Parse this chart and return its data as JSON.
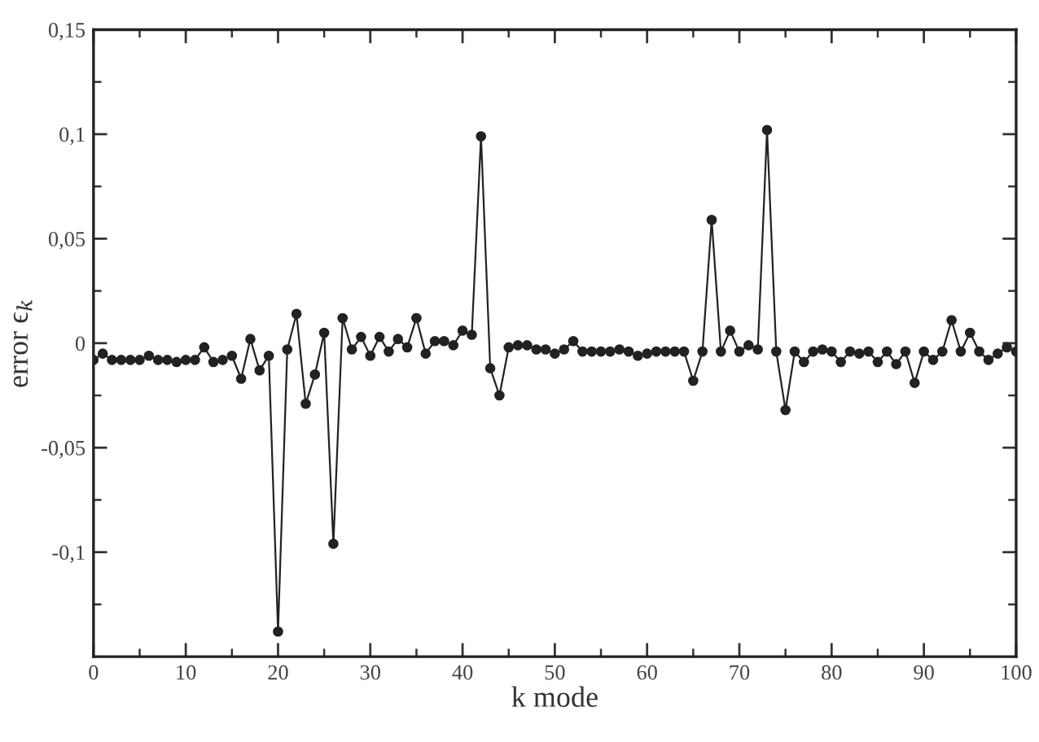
{
  "chart_data": {
    "type": "line",
    "xlabel": "k mode",
    "ylabel": "error ϵ$_{k}$",
    "x": [
      0,
      1,
      2,
      3,
      4,
      5,
      6,
      7,
      8,
      9,
      10,
      11,
      12,
      13,
      14,
      15,
      16,
      17,
      18,
      19,
      20,
      21,
      22,
      23,
      24,
      25,
      26,
      27,
      28,
      29,
      30,
      31,
      32,
      33,
      34,
      35,
      36,
      37,
      38,
      39,
      40,
      41,
      42,
      43,
      44,
      45,
      46,
      47,
      48,
      49,
      50,
      51,
      52,
      53,
      54,
      55,
      56,
      57,
      58,
      59,
      60,
      61,
      62,
      63,
      64,
      65,
      66,
      67,
      68,
      69,
      70,
      71,
      72,
      73,
      74,
      75,
      76,
      77,
      78,
      79,
      80,
      81,
      82,
      83,
      84,
      85,
      86,
      87,
      88,
      89,
      90,
      91,
      92,
      93,
      94,
      95,
      96,
      97,
      98,
      99,
      100
    ],
    "values": [
      -0.008,
      -0.005,
      -0.008,
      -0.008,
      -0.008,
      -0.008,
      -0.006,
      -0.008,
      -0.008,
      -0.009,
      -0.008,
      -0.008,
      -0.002,
      -0.009,
      -0.008,
      -0.006,
      -0.017,
      0.002,
      -0.013,
      -0.006,
      -0.138,
      -0.003,
      0.014,
      -0.029,
      -0.015,
      0.005,
      -0.096,
      0.012,
      -0.003,
      0.003,
      -0.006,
      0.003,
      -0.004,
      0.002,
      -0.002,
      0.012,
      -0.005,
      0.001,
      0.001,
      -0.001,
      0.006,
      0.004,
      0.099,
      -0.012,
      -0.025,
      -0.002,
      -0.001,
      -0.001,
      -0.003,
      -0.003,
      -0.005,
      -0.003,
      0.001,
      -0.004,
      -0.004,
      -0.004,
      -0.004,
      -0.003,
      -0.004,
      -0.006,
      -0.005,
      -0.004,
      -0.004,
      -0.004,
      -0.004,
      -0.018,
      -0.004,
      0.059,
      -0.004,
      0.006,
      -0.004,
      -0.001,
      -0.003,
      0.102,
      -0.004,
      -0.032,
      -0.004,
      -0.009,
      -0.004,
      -0.003,
      -0.004,
      -0.009,
      -0.004,
      -0.005,
      -0.004,
      -0.009,
      -0.004,
      -0.01,
      -0.004,
      -0.019,
      -0.004,
      -0.008,
      -0.004,
      0.011,
      -0.004,
      0.005,
      -0.004,
      -0.008,
      -0.005,
      -0.002,
      -0.004
    ],
    "color": "#222222",
    "marker": "circle",
    "line_style": "solid",
    "xlim": [
      0,
      100
    ],
    "xticks": [
      0,
      {
        "value": 5,
        "label": null
      },
      10,
      {
        "value": 15,
        "label": null
      },
      20,
      {
        "value": 25,
        "label": null
      },
      30,
      {
        "value": 35,
        "label": null
      },
      40,
      {
        "value": 45,
        "label": null
      },
      50,
      {
        "value": 55,
        "label": null
      },
      60,
      {
        "value": 65,
        "label": null
      },
      70,
      {
        "value": 75,
        "label": null
      },
      80,
      {
        "value": 85,
        "label": null
      },
      90,
      {
        "value": 95,
        "label": null
      },
      100
    ],
    "ylim": [
      -0.15,
      0.15
    ],
    "yticks": [
      {
        "value": 0.15,
        "label": "0,15"
      },
      {
        "value": 0.125,
        "label": null
      },
      {
        "value": 0.1,
        "label": "0,1"
      },
      {
        "value": 0.075,
        "label": null
      },
      {
        "value": 0.05,
        "label": "0,05"
      },
      {
        "value": 0.025,
        "label": null
      },
      0,
      {
        "value": -0.025,
        "label": null
      },
      {
        "value": -0.05,
        "label": "-0,05"
      },
      {
        "value": -0.075,
        "label": null
      },
      {
        "value": -0.1,
        "label": "-0,1"
      },
      {
        "value": -0.125,
        "label": null
      }
    ]
  }
}
